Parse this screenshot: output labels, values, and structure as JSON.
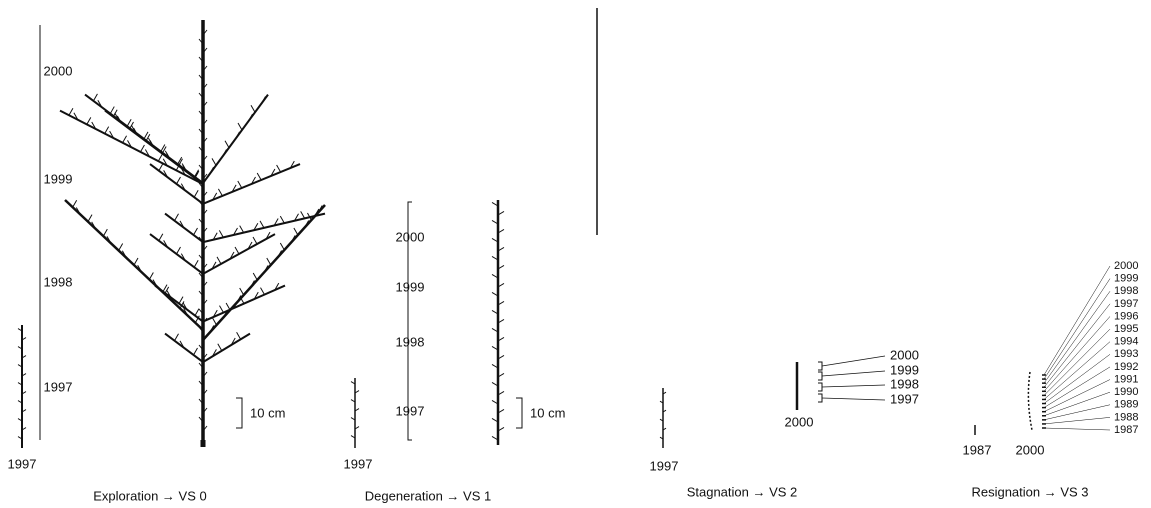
{
  "panels": [
    {
      "caption": "Exploration → VS 0",
      "trees": [
        "1997",
        "2000"
      ],
      "years": [
        "2000",
        "1999",
        "1998",
        "1997"
      ],
      "scale": "10 cm"
    },
    {
      "caption": "Degeneration → VS 1",
      "trees": [
        "1997",
        "2000"
      ],
      "years": [
        "2000",
        "1999",
        "1998",
        "1997"
      ],
      "scale": "10 cm"
    },
    {
      "caption": "Stagnation → VS 2",
      "trees": [
        "1997",
        "2000"
      ],
      "years": [
        "2000",
        "1999",
        "1998",
        "1997"
      ]
    },
    {
      "caption": "Resignation → VS 3",
      "trees": [
        "1987",
        "2000"
      ],
      "years": [
        "2000",
        "1999",
        "1998",
        "1997",
        "1996",
        "1995",
        "1994",
        "1993",
        "1992",
        "1991",
        "1990",
        "1989",
        "1988",
        "1987"
      ]
    }
  ]
}
